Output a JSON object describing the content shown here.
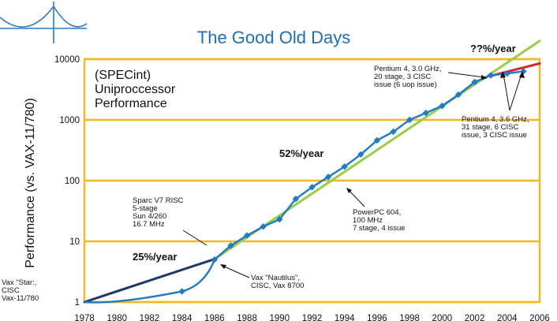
{
  "chart_data": {
    "type": "line",
    "title": "The Good Old Days",
    "inset_label": [
      "(SPECint)",
      "Uniproccessor",
      "Performance"
    ],
    "ylabel": "Performance (vs. VAX-11/780)",
    "xlabel": "",
    "yscale": "log",
    "ylim": [
      1,
      10000
    ],
    "xlim": [
      1978,
      2006
    ],
    "y_ticks": [
      "1",
      "10",
      "100",
      "1000",
      "10000"
    ],
    "x_ticks": [
      "1978",
      "1980",
      "1982",
      "1984",
      "1986",
      "1988",
      "1990",
      "1992",
      "1994",
      "1996",
      "1998",
      "2000",
      "2002",
      "2004",
      "2006"
    ],
    "grid": true,
    "series": [
      {
        "x": [
          1978,
          1984,
          1986,
          1987,
          1988,
          1989,
          1990,
          1991,
          1992,
          1993,
          1994,
          1995,
          1996,
          1997,
          1998,
          1999,
          2000,
          2001,
          2002,
          2003,
          2004,
          2005
        ],
        "y": [
          1,
          1.5,
          5,
          8.5,
          12.5,
          17.5,
          23,
          50,
          78,
          115,
          170,
          270,
          460,
          640,
          1000,
          1300,
          1700,
          2600,
          4200,
          5400,
          5800,
          6300
        ]
      }
    ],
    "trend_lines": [
      {
        "label": "25%/year",
        "from": [
          1978,
          1
        ],
        "to": [
          1986,
          5.1
        ],
        "color": "#1b3a6b"
      },
      {
        "label": "52%/year",
        "from": [
          1986,
          5.1
        ],
        "to": [
          2006,
          20000
        ],
        "color": "#9acd47"
      },
      {
        "label": "??%/year",
        "from": [
          2003,
          5300
        ],
        "to": [
          2006,
          8500
        ],
        "color": "#d9262b"
      }
    ],
    "annotations": [
      {
        "lines": [
          "Vax \"Star:,",
          "CISC",
          "Vax-11/780"
        ]
      },
      {
        "lines": [
          "Sparc V7 RISC",
          "5-stage",
          "Sun 4/260",
          "16.7 MHz"
        ]
      },
      {
        "lines": [
          "Vax \"Nautilus\",",
          "CISC, Vax 8700"
        ]
      },
      {
        "lines": [
          "PowerPC 604,",
          "100 MHz",
          "7 stage, 4 issue"
        ]
      },
      {
        "lines": [
          "Pentium 4, 3.0 GHz,",
          "20 stage, 3 CISC",
          "issue (6 uop issue)"
        ]
      },
      {
        "lines": [
          "Pentium 4, 3.6 GHz,",
          "31 stage, 6 CISC",
          "issue, 3 CISC issue"
        ]
      }
    ],
    "colors": {
      "line": "#1e7bc6",
      "marker": "#1e7bc6",
      "grid": "#f2b825",
      "title": "#1f6fb5"
    }
  }
}
